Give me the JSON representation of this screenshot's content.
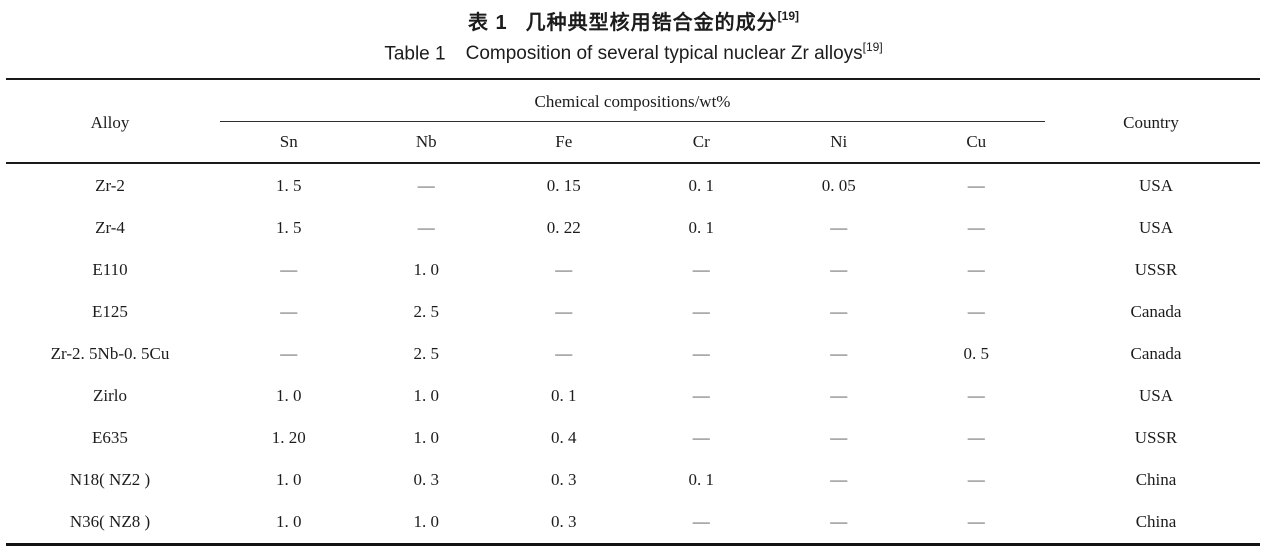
{
  "caption_zh": {
    "label": "表 1",
    "text": "几种典型核用锆合金的成分",
    "ref": "[19]"
  },
  "caption_en": {
    "label": "Table 1",
    "text": "Composition of several typical nuclear Zr alloys",
    "ref": "[19]"
  },
  "table": {
    "group_header": "Chemical compositions/wt%",
    "alloy_header": "Alloy",
    "country_header": "Country",
    "element_headers": [
      "Sn",
      "Nb",
      "Fe",
      "Cr",
      "Ni",
      "Cu"
    ],
    "rows": [
      {
        "alloy": "Zr-2",
        "sn": "1. 5",
        "nb": "—",
        "fe": "0. 15",
        "cr": "0. 1",
        "ni": "0. 05",
        "cu": "—",
        "country": "USA"
      },
      {
        "alloy": "Zr-4",
        "sn": "1. 5",
        "nb": "—",
        "fe": "0. 22",
        "cr": "0. 1",
        "ni": "—",
        "cu": "—",
        "country": "USA"
      },
      {
        "alloy": "E110",
        "sn": "—",
        "nb": "1. 0",
        "fe": "—",
        "cr": "—",
        "ni": "—",
        "cu": "—",
        "country": "USSR"
      },
      {
        "alloy": "E125",
        "sn": "—",
        "nb": "2. 5",
        "fe": "—",
        "cr": "—",
        "ni": "—",
        "cu": "—",
        "country": "Canada"
      },
      {
        "alloy": "Zr-2. 5Nb-0. 5Cu",
        "sn": "—",
        "nb": "2. 5",
        "fe": "—",
        "cr": "—",
        "ni": "—",
        "cu": "0. 5",
        "country": "Canada"
      },
      {
        "alloy": "Zirlo",
        "sn": "1. 0",
        "nb": "1. 0",
        "fe": "0. 1",
        "cr": "—",
        "ni": "—",
        "cu": "—",
        "country": "USA"
      },
      {
        "alloy": "E635",
        "sn": "1. 20",
        "nb": "1. 0",
        "fe": "0. 4",
        "cr": "—",
        "ni": "—",
        "cu": "—",
        "country": "USSR"
      },
      {
        "alloy": "N18( NZ2 )",
        "sn": "1. 0",
        "nb": "0. 3",
        "fe": "0. 3",
        "cr": "0. 1",
        "ni": "—",
        "cu": "—",
        "country": "China"
      },
      {
        "alloy": "N36( NZ8 )",
        "sn": "1. 0",
        "nb": "1. 0",
        "fe": "0. 3",
        "cr": "—",
        "ni": "—",
        "cu": "—",
        "country": "China"
      }
    ]
  },
  "colors": {
    "text": "#1c1c1c",
    "rule": "#1a1a1a",
    "dash": "#555555",
    "background": "#ffffff"
  }
}
